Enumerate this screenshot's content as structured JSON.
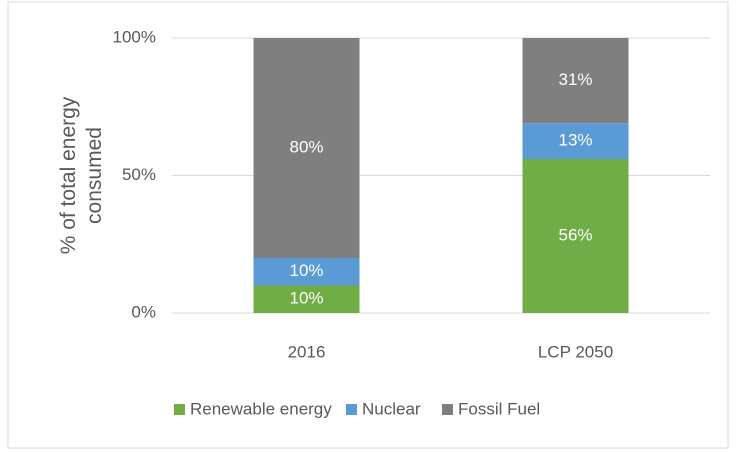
{
  "chart_data": {
    "type": "stacked_bar",
    "ylabel": [
      "% of total energy",
      "consumed"
    ],
    "categories": [
      "2016",
      "LCP 2050"
    ],
    "series": [
      {
        "name": "Renewable energy",
        "color": "#70ad47",
        "values": [
          10,
          56
        ],
        "value_labels": [
          "10%",
          "56%"
        ]
      },
      {
        "name": "Nuclear",
        "color": "#5b9bd5",
        "values": [
          10,
          13
        ],
        "value_labels": [
          "10%",
          "13%"
        ]
      },
      {
        "name": "Fossil Fuel",
        "color": "#7f7f7f",
        "values": [
          80,
          31
        ],
        "value_labels": [
          "80%",
          "31%"
        ]
      }
    ],
    "ylim": [
      0,
      100
    ],
    "yticks": [
      {
        "value": 0,
        "label": "0%"
      },
      {
        "value": 50,
        "label": "50%"
      },
      {
        "value": 100,
        "label": "100%"
      }
    ],
    "grid": true,
    "legend": "bottom"
  }
}
